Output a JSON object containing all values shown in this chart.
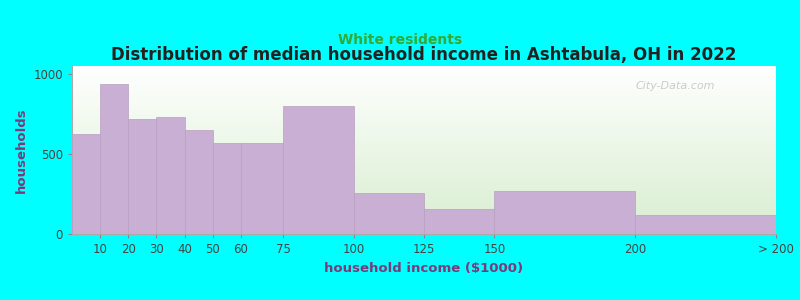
{
  "title": "Distribution of median household income in Ashtabula, OH in 2022",
  "subtitle": "White residents",
  "xlabel": "household income ($1000)",
  "ylabel": "households",
  "background_color": "#00FFFF",
  "bar_color": "#c9afd4",
  "bar_edge_color": "#b89fc0",
  "watermark": "City-Data.com",
  "title_fontsize": 12,
  "subtitle_fontsize": 10,
  "axis_label_fontsize": 9.5,
  "tick_fontsize": 8.5,
  "title_color": "#222222",
  "subtitle_color": "#33aa33",
  "axis_label_color": "#7a3a7a",
  "tick_color": "#444444",
  "ylim": [
    0,
    1050
  ],
  "yticks": [
    0,
    500,
    1000
  ],
  "bin_edges": [
    0,
    10,
    20,
    30,
    40,
    50,
    60,
    75,
    100,
    125,
    150,
    200,
    250
  ],
  "tick_labels": [
    "10",
    "20",
    "30",
    "40",
    "50",
    "60",
    "75",
    "100",
    "125",
    "150",
    "200",
    "> 200"
  ],
  "values": [
    625,
    940,
    720,
    730,
    650,
    570,
    570,
    800,
    255,
    155,
    270,
    120
  ]
}
